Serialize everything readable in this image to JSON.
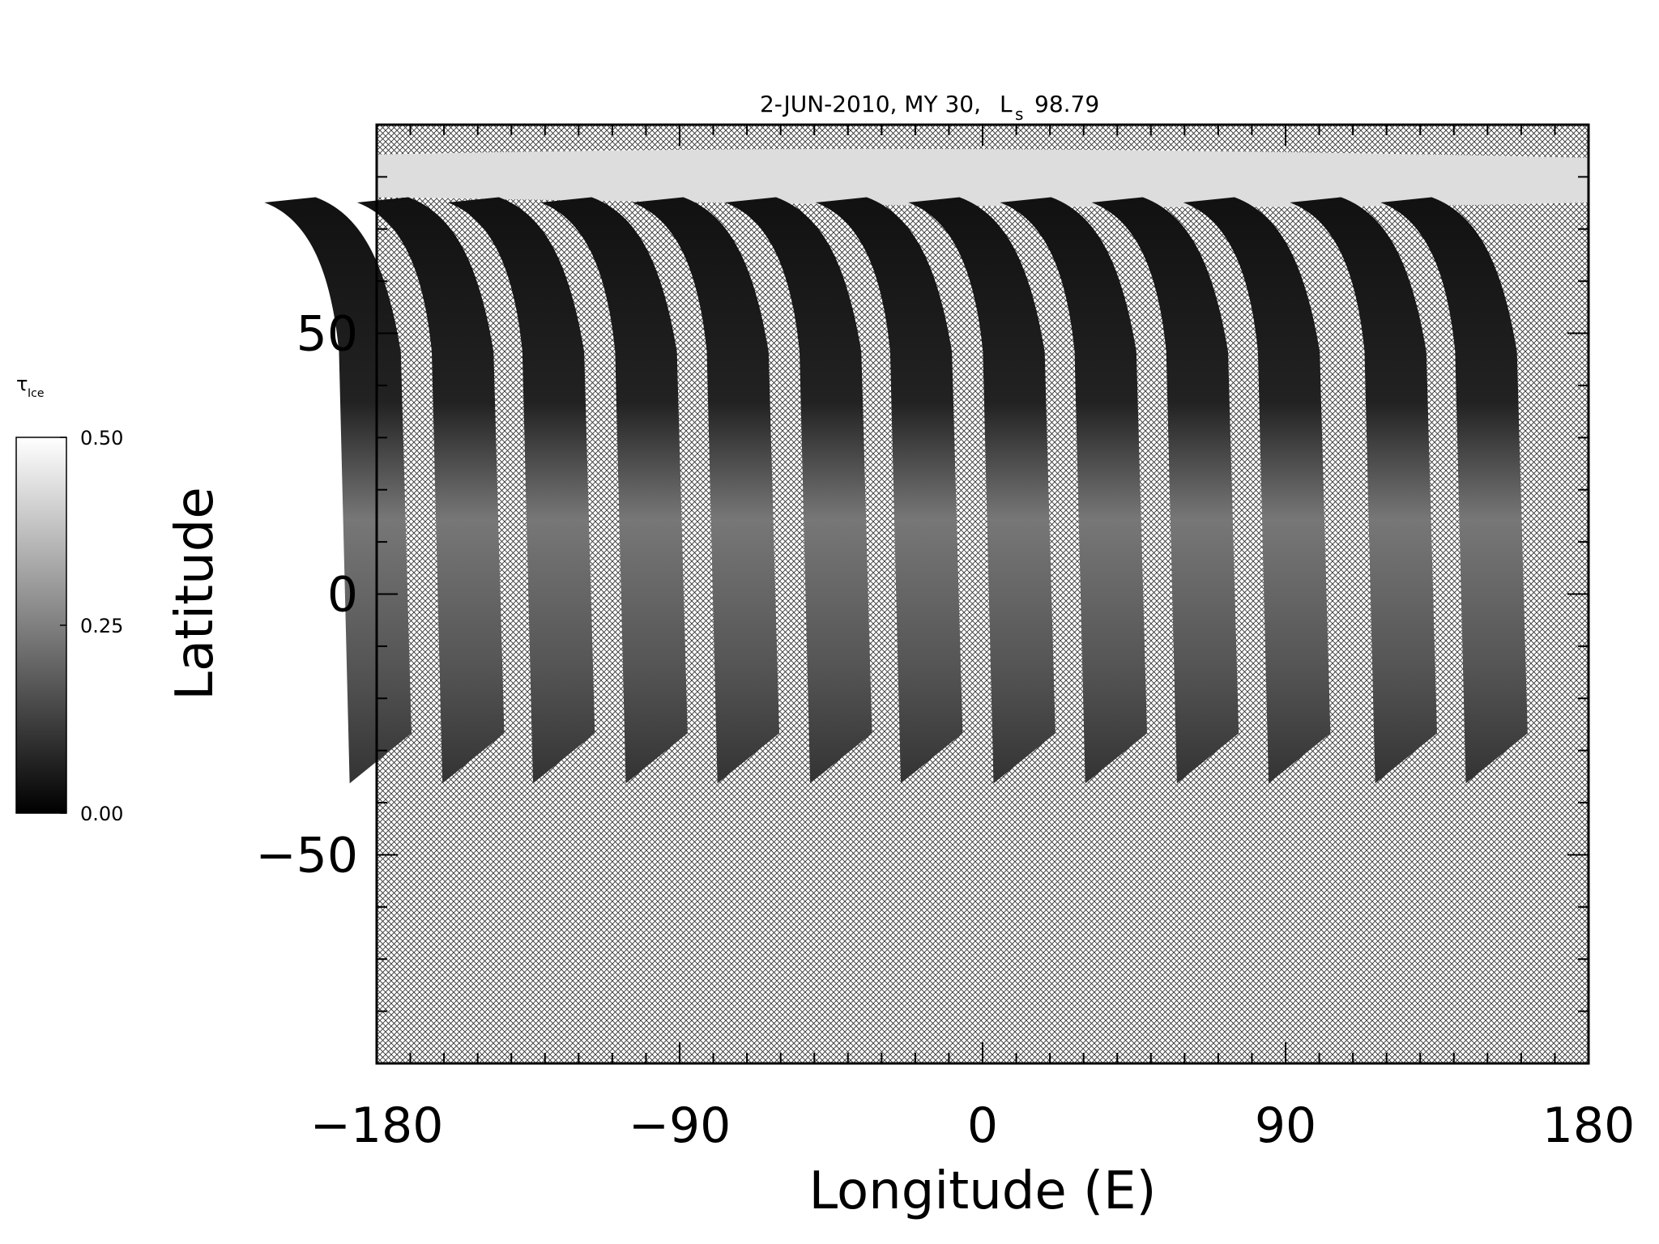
{
  "chart_data": {
    "type": "map",
    "title": {
      "prefix": "2-JUN-2010, MY 30,",
      "symbol": "L",
      "subscript": "s",
      "value": "98.79"
    },
    "x_label": "Longitude (E)",
    "y_label": "Latitude",
    "xlim": [
      -180,
      180
    ],
    "xticks": [
      {
        "value": -180,
        "label": "−180"
      },
      {
        "value": -90,
        "label": "−90"
      },
      0,
      90,
      180
    ],
    "xminorticks": [
      -170,
      -160,
      -150,
      -140,
      -130,
      -120,
      -110,
      -100,
      -80,
      -70,
      -60,
      -50,
      -40,
      -30,
      -20,
      -10,
      10,
      20,
      30,
      40,
      50,
      60,
      70,
      80,
      100,
      110,
      120,
      130,
      140,
      150,
      160,
      170
    ],
    "ylim": [
      -90,
      90
    ],
    "yticks": [
      {
        "value": -50,
        "label": "−50"
      },
      0,
      50
    ],
    "yminorticks": [
      -80,
      -70,
      -60,
      -40,
      -30,
      -20,
      -10,
      10,
      20,
      30,
      40,
      60,
      70,
      80
    ],
    "colorbar": {
      "symbol": "τ",
      "subscript": "Ice",
      "lim": [
        0,
        0.5
      ],
      "ticks": [
        {
          "value": 0,
          "label": "0.00"
        },
        {
          "value": 0.25,
          "label": "0.25"
        },
        {
          "value": 0.5,
          "label": "0.50"
        }
      ],
      "colors": [
        "#000000",
        "#ffffff"
      ]
    }
  }
}
